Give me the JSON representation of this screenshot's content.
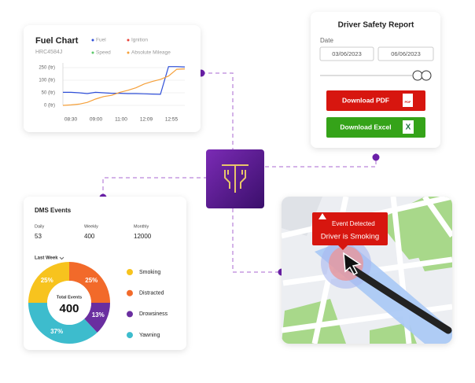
{
  "fuel_chart": {
    "title": "Fuel Chart",
    "subtitle": "HRC4584J",
    "series": [
      {
        "name": "Fuel",
        "color": "#2f4fd8",
        "values": [
          52,
          52,
          50,
          47,
          52,
          50,
          48,
          48,
          47,
          47,
          46,
          45,
          44,
          262,
          262,
          258
        ]
      },
      {
        "name": "Ignition",
        "color": "#e8433a"
      },
      {
        "name": "Speed",
        "color": "#5cc96a"
      },
      {
        "name": "Absolute Mileage",
        "color": "#f5a03a",
        "values": [
          0,
          2,
          5,
          12,
          25,
          35,
          40,
          52,
          60,
          70,
          85,
          95,
          110,
          150,
          230,
          235
        ]
      }
    ],
    "x_labels": [
      "08:30",
      "09:00",
      "11:00",
      "12:09",
      "12:55"
    ],
    "yticks": [
      {
        "value": 0,
        "label": "0 (ltr)"
      },
      {
        "value": 50,
        "label": "50 (ltr)"
      },
      {
        "value": 100,
        "label": "100 (ltr)"
      },
      {
        "value": 250,
        "label": "250 (ltr)"
      }
    ]
  },
  "report": {
    "title": "Driver Safety Report",
    "date_label": "Date",
    "start_date": "03/06/2023",
    "end_date": "06/06/2023",
    "pdf_button": "Download PDF",
    "pdf_icon": "PDF",
    "excel_button": "Download Excel",
    "excel_icon": "X"
  },
  "dms": {
    "title": "DMS Events",
    "stats": [
      {
        "label": "Daily",
        "value": 53
      },
      {
        "label": "Weekly",
        "value": 400
      },
      {
        "label": "Monthly",
        "value": 12000
      }
    ],
    "filter": "Last Week",
    "donut": {
      "center_label": "Total Events",
      "total": 400,
      "segments": [
        {
          "name": "Smoking",
          "color": "#f7c31e",
          "value": 25,
          "value_label": "25%"
        },
        {
          "name": "Distracted",
          "color": "#f26a2a",
          "value": 25,
          "value_label": "25%"
        },
        {
          "name": "Drowsiness",
          "color": "#6a2ea0",
          "value": 13,
          "value_label": "13%"
        },
        {
          "name": "Yawning",
          "color": "#3dbccd",
          "value": 37,
          "value_label": "37%"
        }
      ]
    }
  },
  "map": {
    "event_title": "Event Detected",
    "event_text": "Driver is Smoking"
  }
}
